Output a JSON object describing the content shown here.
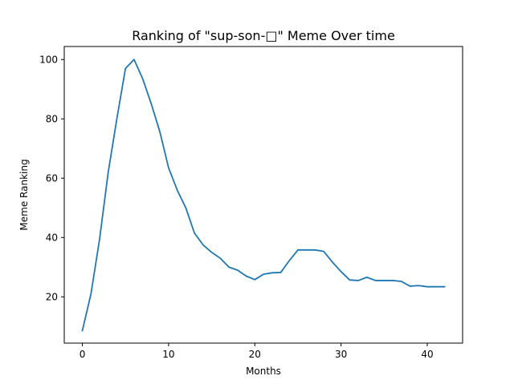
{
  "chart_data": {
    "type": "line",
    "title": "Ranking of \"sup-son-□\" Meme Over time",
    "xlabel": "Months",
    "ylabel": "Meme Ranking",
    "xlim": [
      -2.1,
      44.1
    ],
    "ylim": [
      4.4,
      104.4
    ],
    "x_ticks": [
      0,
      10,
      20,
      30,
      40
    ],
    "y_ticks": [
      20,
      40,
      60,
      80,
      100
    ],
    "grid": false,
    "legend": "none",
    "series": [
      {
        "color": "#1f77b4",
        "x": [
          0,
          1,
          2,
          3,
          4,
          5,
          6,
          7,
          8,
          9,
          10,
          11,
          12,
          13,
          14,
          15,
          16,
          17,
          18,
          19,
          20,
          21,
          22,
          23,
          24,
          25,
          26,
          27,
          28,
          29,
          30,
          31,
          32,
          33,
          34,
          35,
          36,
          37,
          38,
          39,
          40,
          41,
          42
        ],
        "y": [
          8.6,
          21,
          39.5,
          62,
          80,
          97,
          100,
          93.5,
          85,
          75.5,
          63.5,
          56,
          50,
          41.5,
          37.5,
          35,
          33,
          30,
          29,
          27,
          25.8,
          27.6,
          28.1,
          28.2,
          32.2,
          35.8,
          35.8,
          35.8,
          35.3,
          31.7,
          28.5,
          25.7,
          25.5,
          26.6,
          25.5,
          25.5,
          25.5,
          25.2,
          23.6,
          23.8,
          23.4,
          23.4,
          23.4
        ]
      }
    ]
  }
}
